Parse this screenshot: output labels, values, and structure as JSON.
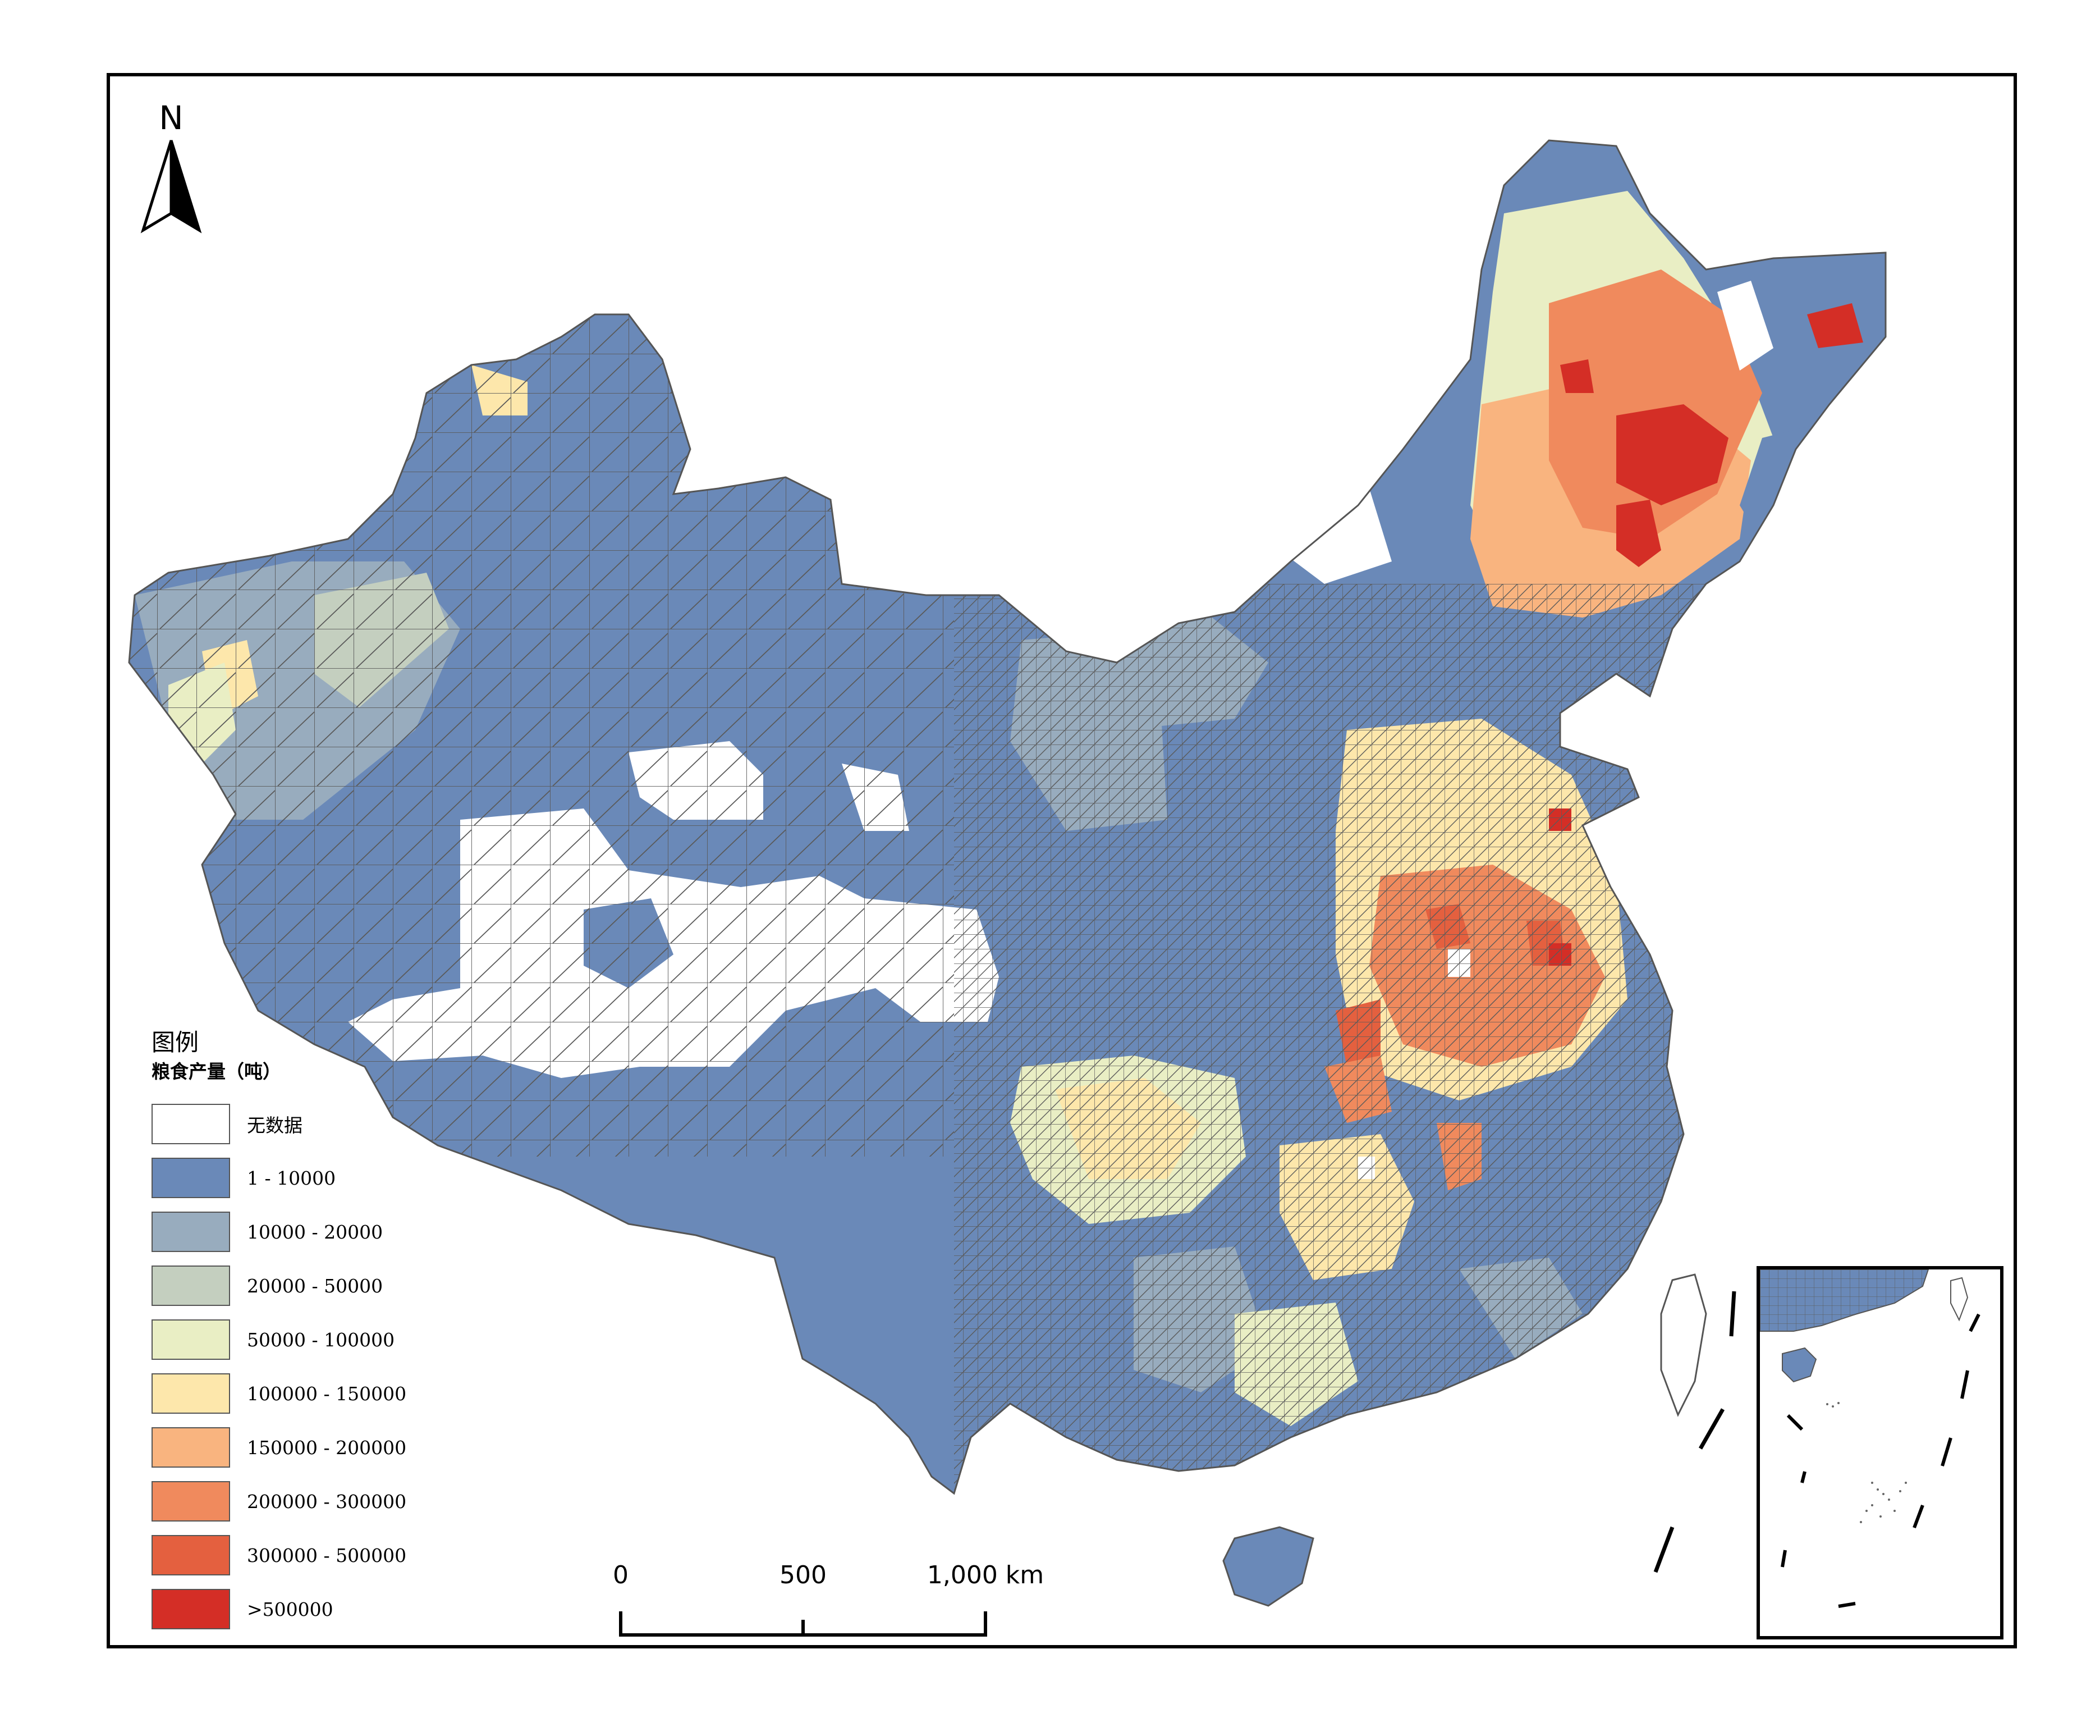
{
  "map": {
    "north_label": "N",
    "legend": {
      "title": "图例",
      "subtitle": "粮食产量（吨）",
      "items": [
        {
          "label": "无数据",
          "color": "#ffffff"
        },
        {
          "label": "1 - 10000",
          "color": "#6a89b8"
        },
        {
          "label": "10000 - 20000",
          "color": "#98acbe"
        },
        {
          "label": "20000 - 50000",
          "color": "#c4cfbf"
        },
        {
          "label": "50000 - 100000",
          "color": "#e9eec4"
        },
        {
          "label": "100000 - 150000",
          "color": "#fde7ab"
        },
        {
          "label": "150000 - 200000",
          "color": "#f9b47f"
        },
        {
          "label": "200000 - 300000",
          "color": "#f08a5d"
        },
        {
          "label": "300000 - 500000",
          "color": "#e4603f"
        },
        {
          "label": ">500000",
          "color": "#d42e26"
        }
      ]
    },
    "scale": {
      "labels": [
        "0",
        "500",
        "1,000 km"
      ]
    }
  }
}
